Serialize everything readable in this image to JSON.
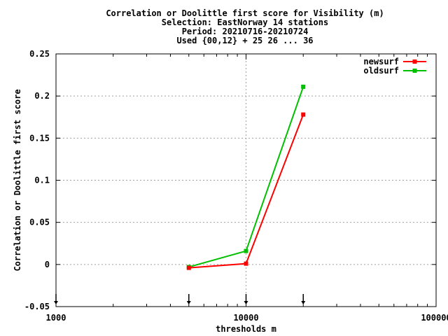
{
  "chart_data": {
    "type": "line",
    "title_lines": [
      "Correlation or Doolittle first score  for Visibility (m)",
      "Selection: EastNorway     14 stations",
      "Period: 20210716-20210724",
      "Used {00,12} + 25 26 ... 36"
    ],
    "xlabel": "thresholds m",
    "ylabel": "Correlation or Doolittle first score",
    "x_scale": "log",
    "xlim": [
      1000,
      100000
    ],
    "ylim": [
      -0.05,
      0.25
    ],
    "x_ticks": [
      {
        "value": 1000,
        "label": "1000"
      },
      {
        "value": 10000,
        "label": "10000"
      },
      {
        "value": 100000,
        "label": "100000"
      }
    ],
    "y_ticks": [
      {
        "value": -0.05,
        "label": "-0.05"
      },
      {
        "value": 0,
        "label": "0"
      },
      {
        "value": 0.05,
        "label": "0.05"
      },
      {
        "value": 0.1,
        "label": "0.1"
      },
      {
        "value": 0.15,
        "label": "0.15"
      },
      {
        "value": 0.2,
        "label": "0.2"
      },
      {
        "value": 0.25,
        "label": "0.25"
      }
    ],
    "threshold_markers": [
      1000,
      5000,
      10000,
      20000
    ],
    "grid": true,
    "legend_position": "top-right",
    "series": [
      {
        "name": "newsurf",
        "color": "#ff0000",
        "x": [
          5000,
          10000,
          20000
        ],
        "y": [
          -0.004,
          0.001,
          0.178
        ]
      },
      {
        "name": "oldsurf",
        "color": "#00c000",
        "x": [
          5000,
          10000,
          20000
        ],
        "y": [
          -0.003,
          0.016,
          0.211
        ]
      }
    ]
  }
}
